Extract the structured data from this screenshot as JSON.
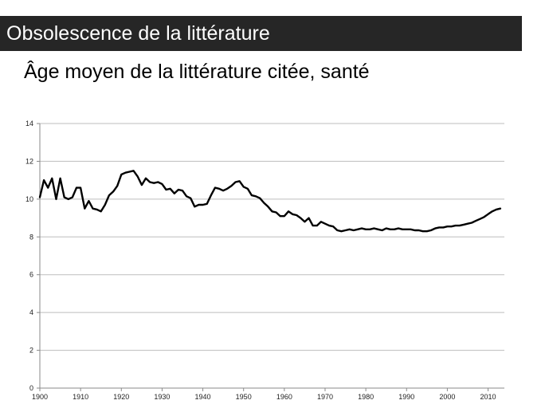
{
  "header": {
    "banner_title": "Obsolescence de la littérature",
    "chart_title": "Âge moyen de la littérature citée, santé"
  },
  "colors": {
    "banner_bg": "#262626",
    "banner_text": "#ffffff",
    "line": "#000000",
    "grid": "#bdbdbd"
  },
  "chart_data": {
    "type": "line",
    "title": "Âge moyen de la littérature citée, santé",
    "xlabel": "",
    "ylabel": "",
    "xlim": [
      1900,
      2014
    ],
    "ylim": [
      0,
      14
    ],
    "grid": "horizontal",
    "legend": "none",
    "x_ticks": [
      1900,
      1910,
      1920,
      1930,
      1940,
      1950,
      1960,
      1970,
      1980,
      1990,
      2000,
      2010
    ],
    "y_ticks": [
      0,
      2,
      4,
      6,
      8,
      10,
      12,
      14
    ],
    "series": [
      {
        "x": [
          1900,
          1901,
          1902,
          1903,
          1904,
          1905,
          1906,
          1907,
          1908,
          1909,
          1910,
          1911,
          1912,
          1913,
          1914,
          1915,
          1916,
          1917,
          1918,
          1919,
          1920,
          1921,
          1922,
          1923,
          1924,
          1925,
          1926,
          1927,
          1928,
          1929,
          1930,
          1931,
          1932,
          1933,
          1934,
          1935,
          1936,
          1937,
          1938,
          1939,
          1940,
          1941,
          1942,
          1943,
          1944,
          1945,
          1946,
          1947,
          1948,
          1949,
          1950,
          1951,
          1952,
          1953,
          1954,
          1955,
          1956,
          1957,
          1958,
          1959,
          1960,
          1961,
          1962,
          1963,
          1964,
          1965,
          1966,
          1967,
          1968,
          1969,
          1970,
          1971,
          1972,
          1973,
          1974,
          1975,
          1976,
          1977,
          1978,
          1979,
          1980,
          1981,
          1982,
          1983,
          1984,
          1985,
          1986,
          1987,
          1988,
          1989,
          1990,
          1991,
          1992,
          1993,
          1994,
          1995,
          1996,
          1997,
          1998,
          1999,
          2000,
          2001,
          2002,
          2003,
          2004,
          2005,
          2006,
          2007,
          2008,
          2009,
          2010,
          2011,
          2012,
          2013
        ],
        "values": [
          10.1,
          11.0,
          10.6,
          11.1,
          10.0,
          11.1,
          10.1,
          10.0,
          10.1,
          10.6,
          10.6,
          9.5,
          9.9,
          9.5,
          9.45,
          9.35,
          9.7,
          10.2,
          10.4,
          10.7,
          11.3,
          11.4,
          11.45,
          11.5,
          11.2,
          10.75,
          11.1,
          10.9,
          10.85,
          10.9,
          10.8,
          10.5,
          10.55,
          10.3,
          10.5,
          10.45,
          10.15,
          10.05,
          9.6,
          9.7,
          9.7,
          9.75,
          10.2,
          10.6,
          10.55,
          10.45,
          10.55,
          10.7,
          10.9,
          10.95,
          10.65,
          10.55,
          10.2,
          10.15,
          10.05,
          9.8,
          9.6,
          9.35,
          9.3,
          9.1,
          9.1,
          9.35,
          9.2,
          9.15,
          9.0,
          8.8,
          9.0,
          8.6,
          8.6,
          8.8,
          8.7,
          8.6,
          8.55,
          8.35,
          8.3,
          8.35,
          8.4,
          8.35,
          8.4,
          8.45,
          8.4,
          8.4,
          8.45,
          8.4,
          8.35,
          8.45,
          8.4,
          8.4,
          8.45,
          8.4,
          8.4,
          8.4,
          8.35,
          8.35,
          8.3,
          8.3,
          8.35,
          8.45,
          8.5,
          8.5,
          8.55,
          8.55,
          8.6,
          8.6,
          8.65,
          8.7,
          8.75,
          8.85,
          8.95,
          9.05,
          9.2,
          9.35,
          9.45,
          9.5
        ]
      }
    ]
  }
}
